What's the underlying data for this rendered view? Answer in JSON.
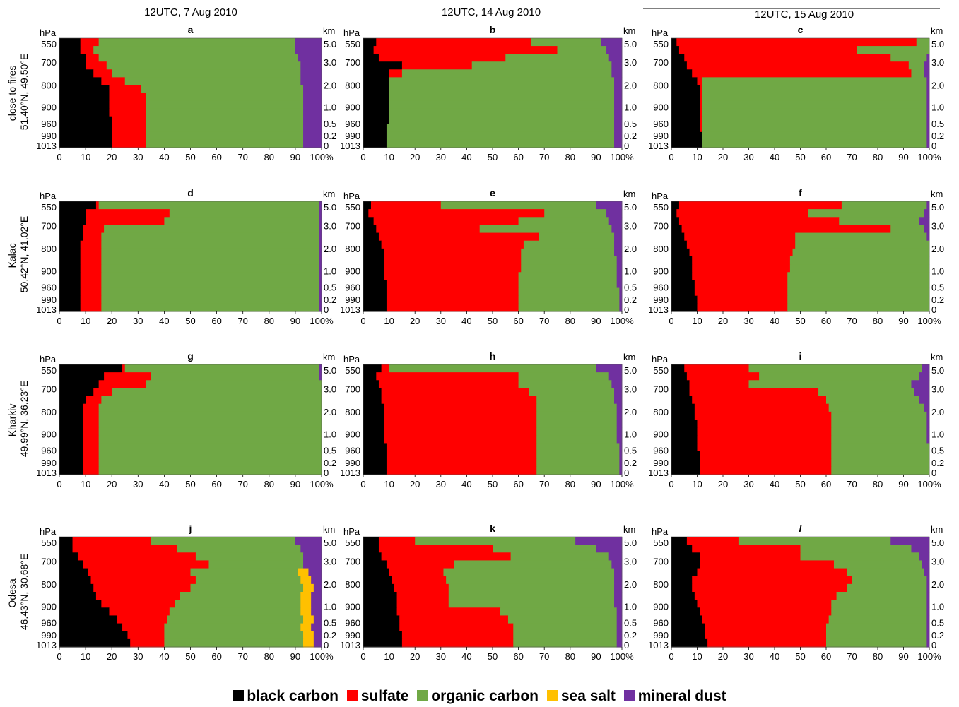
{
  "columns": [
    "12UTC, 7 Aug 2010",
    "12UTC, 14 Aug 2010",
    "12UTC, 15 Aug 2010"
  ],
  "rows": [
    {
      "name": "close to fires",
      "coords": "51.40°N, 49.50°E"
    },
    {
      "name": "Kalac",
      "coords": "50.42°N, 41.02°E"
    },
    {
      "name": "Kharkiv",
      "coords": "49.99°N, 36.23°E"
    },
    {
      "name": "Odesa",
      "coords": "46.43°N, 30.68°E"
    }
  ],
  "legend": [
    {
      "label": "black carbon",
      "color": "#000000"
    },
    {
      "label": "sulfate",
      "color": "#ff0000"
    },
    {
      "label": "organic carbon",
      "color": "#70a845"
    },
    {
      "label": "sea salt",
      "color": "#ffc000"
    },
    {
      "label": "mineral dust",
      "color": "#7030a0"
    }
  ],
  "chart_data": {
    "type": "area",
    "stacking": "percent",
    "xlabel": "%",
    "xlim": [
      0,
      100
    ],
    "x_ticks": [
      "0",
      "10",
      "20",
      "30",
      "40",
      "50",
      "60",
      "70",
      "80",
      "90",
      "100%"
    ],
    "left_axis_unit": "hPa",
    "left_axis_ticks": [
      "550",
      "700",
      "800",
      "900",
      "960",
      "990",
      "1013"
    ],
    "right_axis_unit": "km",
    "right_axis_ticks": [
      "5.0",
      "3.0",
      "2.0",
      "1.0",
      "0.5",
      "0.2",
      "0"
    ],
    "pressure_levels": [
      550,
      600,
      650,
      700,
      750,
      800,
      850,
      900,
      930,
      960,
      975,
      990,
      1000,
      1013
    ],
    "component_order": [
      "black carbon",
      "sulfate",
      "organic carbon",
      "sea salt",
      "mineral dust"
    ],
    "panels": [
      {
        "label": "a",
        "boundaries": [
          [
            8,
            15,
            90,
            90
          ],
          [
            8,
            13,
            90,
            90
          ],
          [
            10,
            15,
            91,
            91
          ],
          [
            10,
            18,
            92,
            92
          ],
          [
            13,
            20,
            92,
            92
          ],
          [
            16,
            25,
            92,
            92
          ],
          [
            19,
            31,
            93,
            93
          ],
          [
            19,
            33,
            93,
            93
          ],
          [
            19,
            33,
            93,
            93
          ],
          [
            19,
            33,
            93,
            93
          ],
          [
            20,
            33,
            93,
            93
          ],
          [
            20,
            33,
            93,
            93
          ],
          [
            20,
            33,
            93,
            93
          ],
          [
            20,
            33,
            93,
            93
          ]
        ]
      },
      {
        "label": "b",
        "boundaries": [
          [
            5,
            65,
            92,
            92
          ],
          [
            4,
            75,
            94,
            94
          ],
          [
            6,
            55,
            95,
            95
          ],
          [
            15,
            42,
            96,
            96
          ],
          [
            10,
            15,
            96,
            96
          ],
          [
            10,
            10,
            97,
            97
          ],
          [
            10,
            10,
            97,
            97
          ],
          [
            10,
            10,
            97,
            97
          ],
          [
            10,
            10,
            97,
            97
          ],
          [
            10,
            10,
            97,
            97
          ],
          [
            10,
            10,
            97,
            97
          ],
          [
            9,
            9,
            97,
            97
          ],
          [
            9,
            9,
            97,
            97
          ],
          [
            9,
            9,
            97,
            97
          ]
        ]
      },
      {
        "label": "c",
        "boundaries": [
          [
            2,
            95,
            100,
            100
          ],
          [
            3,
            72,
            100,
            100
          ],
          [
            5,
            85,
            99,
            99
          ],
          [
            6,
            92,
            98,
            98
          ],
          [
            8,
            93,
            98,
            98
          ],
          [
            10,
            12,
            99,
            99
          ],
          [
            11,
            12,
            99,
            99
          ],
          [
            11,
            12,
            99,
            99
          ],
          [
            11,
            12,
            99,
            99
          ],
          [
            11,
            12,
            99,
            99
          ],
          [
            11,
            12,
            99,
            99
          ],
          [
            11,
            12,
            99,
            99
          ],
          [
            12,
            12,
            99,
            99
          ],
          [
            12,
            12,
            99,
            99
          ]
        ]
      },
      {
        "label": "d",
        "boundaries": [
          [
            14,
            15,
            99,
            99
          ],
          [
            10,
            42,
            99,
            99
          ],
          [
            10,
            40,
            99,
            99
          ],
          [
            9,
            17,
            99,
            99
          ],
          [
            9,
            16,
            99,
            99
          ],
          [
            8,
            16,
            99,
            99
          ],
          [
            8,
            16,
            99,
            99
          ],
          [
            8,
            16,
            99,
            99
          ],
          [
            8,
            16,
            99,
            99
          ],
          [
            8,
            16,
            99,
            99
          ],
          [
            8,
            16,
            99,
            99
          ],
          [
            8,
            16,
            99,
            99
          ],
          [
            8,
            16,
            99,
            99
          ],
          [
            8,
            16,
            99,
            99
          ]
        ]
      },
      {
        "label": "e",
        "boundaries": [
          [
            3,
            30,
            90,
            90
          ],
          [
            2,
            70,
            94,
            94
          ],
          [
            4,
            60,
            95,
            95
          ],
          [
            5,
            45,
            96,
            96
          ],
          [
            6,
            68,
            97,
            97
          ],
          [
            7,
            62,
            97,
            97
          ],
          [
            8,
            61,
            97,
            97
          ],
          [
            8,
            61,
            98,
            98
          ],
          [
            8,
            61,
            98,
            98
          ],
          [
            8,
            60,
            98,
            98
          ],
          [
            9,
            60,
            98,
            98
          ],
          [
            9,
            60,
            99,
            99
          ],
          [
            9,
            60,
            99,
            99
          ],
          [
            9,
            60,
            99,
            99
          ]
        ]
      },
      {
        "label": "f",
        "boundaries": [
          [
            3,
            66,
            99,
            99
          ],
          [
            2,
            53,
            98,
            98
          ],
          [
            3,
            65,
            96,
            96
          ],
          [
            4,
            85,
            98,
            98
          ],
          [
            5,
            48,
            99,
            99
          ],
          [
            6,
            48,
            100,
            100
          ],
          [
            7,
            47,
            100,
            100
          ],
          [
            8,
            46,
            100,
            100
          ],
          [
            8,
            46,
            100,
            100
          ],
          [
            8,
            45,
            100,
            100
          ],
          [
            9,
            45,
            100,
            100
          ],
          [
            9,
            45,
            100,
            100
          ],
          [
            10,
            45,
            100,
            100
          ],
          [
            10,
            45,
            100,
            100
          ]
        ]
      },
      {
        "label": "g",
        "boundaries": [
          [
            24,
            25,
            99,
            99
          ],
          [
            17,
            35,
            99,
            99
          ],
          [
            15,
            33,
            100,
            100
          ],
          [
            13,
            20,
            100,
            100
          ],
          [
            10,
            16,
            100,
            100
          ],
          [
            9,
            15,
            100,
            100
          ],
          [
            9,
            15,
            100,
            100
          ],
          [
            9,
            15,
            100,
            100
          ],
          [
            9,
            15,
            100,
            100
          ],
          [
            9,
            15,
            100,
            100
          ],
          [
            9,
            15,
            100,
            100
          ],
          [
            9,
            15,
            100,
            100
          ],
          [
            9,
            15,
            100,
            100
          ],
          [
            9,
            15,
            100,
            100
          ]
        ]
      },
      {
        "label": "h",
        "boundaries": [
          [
            7,
            10,
            90,
            90
          ],
          [
            5,
            60,
            95,
            95
          ],
          [
            6,
            60,
            96,
            96
          ],
          [
            7,
            64,
            97,
            97
          ],
          [
            7,
            67,
            97,
            97
          ],
          [
            8,
            67,
            98,
            98
          ],
          [
            8,
            67,
            98,
            98
          ],
          [
            8,
            67,
            98,
            98
          ],
          [
            8,
            67,
            98,
            98
          ],
          [
            8,
            67,
            98,
            98
          ],
          [
            9,
            67,
            99,
            99
          ],
          [
            9,
            67,
            99,
            99
          ],
          [
            9,
            67,
            99,
            99
          ],
          [
            9,
            67,
            99,
            99
          ]
        ]
      },
      {
        "label": "i",
        "boundaries": [
          [
            5,
            30,
            97,
            97
          ],
          [
            6,
            34,
            96,
            96
          ],
          [
            7,
            30,
            93,
            93
          ],
          [
            7,
            57,
            94,
            94
          ],
          [
            8,
            60,
            96,
            96
          ],
          [
            9,
            61,
            98,
            98
          ],
          [
            9,
            62,
            99,
            99
          ],
          [
            10,
            62,
            99,
            99
          ],
          [
            10,
            62,
            99,
            99
          ],
          [
            10,
            62,
            99,
            99
          ],
          [
            10,
            62,
            100,
            100
          ],
          [
            11,
            62,
            100,
            100
          ],
          [
            11,
            62,
            100,
            100
          ],
          [
            11,
            62,
            100,
            100
          ]
        ]
      },
      {
        "label": "j",
        "boundaries": [
          [
            5,
            35,
            90,
            90
          ],
          [
            5,
            45,
            92,
            92
          ],
          [
            7,
            52,
            93,
            93
          ],
          [
            9,
            57,
            93,
            93
          ],
          [
            11,
            50,
            91,
            95
          ],
          [
            12,
            52,
            92,
            96
          ],
          [
            13,
            50,
            93,
            97
          ],
          [
            14,
            46,
            92,
            96
          ],
          [
            16,
            44,
            92,
            96
          ],
          [
            19,
            42,
            92,
            96
          ],
          [
            22,
            41,
            93,
            97
          ],
          [
            24,
            40,
            92,
            96
          ],
          [
            26,
            40,
            93,
            97
          ],
          [
            27,
            40,
            93,
            97
          ]
        ]
      },
      {
        "label": "k",
        "boundaries": [
          [
            6,
            20,
            82,
            82
          ],
          [
            6,
            50,
            90,
            90
          ],
          [
            7,
            57,
            95,
            95
          ],
          [
            9,
            35,
            96,
            96
          ],
          [
            10,
            31,
            97,
            97
          ],
          [
            11,
            32,
            97,
            97
          ],
          [
            12,
            33,
            97,
            97
          ],
          [
            13,
            33,
            97,
            97
          ],
          [
            13,
            33,
            97,
            97
          ],
          [
            13,
            53,
            98,
            98
          ],
          [
            14,
            56,
            98,
            98
          ],
          [
            14,
            58,
            98,
            98
          ],
          [
            15,
            58,
            98,
            98
          ],
          [
            15,
            58,
            98,
            98
          ]
        ]
      },
      {
        "label": "l",
        "boundaries": [
          [
            6,
            26,
            85,
            85
          ],
          [
            8,
            50,
            93,
            93
          ],
          [
            11,
            50,
            96,
            96
          ],
          [
            11,
            63,
            97,
            97
          ],
          [
            10,
            68,
            98,
            98
          ],
          [
            8,
            70,
            99,
            99
          ],
          [
            8,
            68,
            99,
            99
          ],
          [
            9,
            64,
            99,
            99
          ],
          [
            10,
            62,
            99,
            99
          ],
          [
            11,
            62,
            99,
            99
          ],
          [
            12,
            61,
            99,
            99
          ],
          [
            13,
            60,
            99,
            99
          ],
          [
            13,
            60,
            99,
            99
          ],
          [
            14,
            60,
            99,
            99
          ]
        ]
      }
    ]
  }
}
